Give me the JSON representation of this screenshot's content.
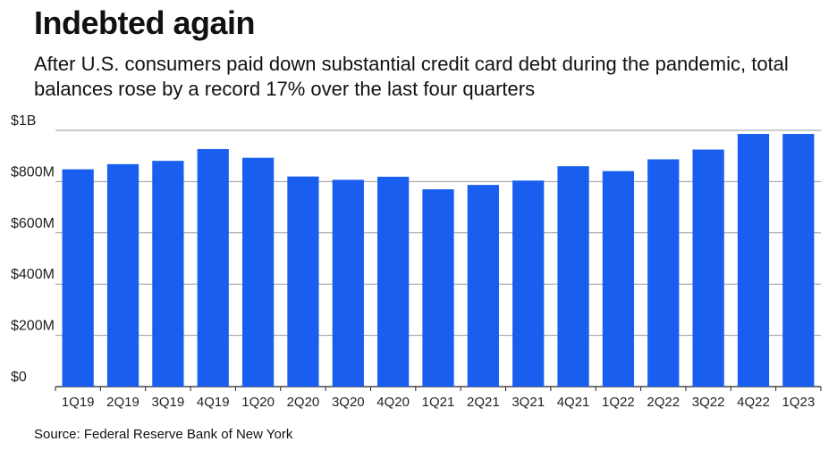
{
  "title": "Indebted again",
  "subtitle": "After U.S. consumers paid down substantial credit card debt during the pandemic, total balances rose by a record 17% over the last four quarters",
  "source": "Source: Federal Reserve Bank of New York",
  "colors": {
    "bar": "#1a5ef0",
    "grid": "#9a9a9a",
    "axis": "#222222"
  },
  "chart_data": {
    "type": "bar",
    "categories": [
      "1Q19",
      "2Q19",
      "3Q19",
      "4Q19",
      "1Q20",
      "2Q20",
      "3Q20",
      "4Q20",
      "1Q21",
      "2Q21",
      "3Q21",
      "4Q21",
      "1Q22",
      "2Q22",
      "3Q22",
      "4Q22",
      "1Q23"
    ],
    "values": [
      848,
      868,
      881,
      927,
      893,
      820,
      807,
      819,
      770,
      787,
      804,
      860,
      841,
      887,
      925,
      986,
      986
    ],
    "unit": "millions of dollars",
    "ylim": [
      0,
      1000
    ],
    "yticks": [
      {
        "value": 0,
        "label": "$0"
      },
      {
        "value": 200,
        "label": "$200M"
      },
      {
        "value": 400,
        "label": "$400M"
      },
      {
        "value": 600,
        "label": "$600M"
      },
      {
        "value": 800,
        "label": "$800M"
      },
      {
        "value": 1000,
        "label": "$1B"
      }
    ],
    "grid": true,
    "xlabel": "",
    "ylabel": ""
  }
}
